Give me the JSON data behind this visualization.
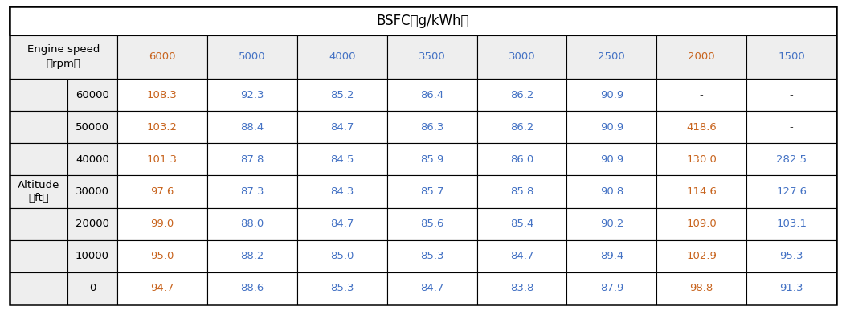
{
  "title": "BSFC（g/kWh）",
  "col_header_label1": "Engine speed",
  "col_header_label2": "（rpm）",
  "row_header_label1": "Altitude",
  "row_header_label2": "（ft）",
  "engine_speeds": [
    "6000",
    "5000",
    "4000",
    "3500",
    "3000",
    "2500",
    "2000",
    "1500"
  ],
  "altitudes": [
    "60000",
    "50000",
    "40000",
    "30000",
    "20000",
    "10000",
    "0"
  ],
  "data": [
    [
      "108.3",
      "92.3",
      "85.2",
      "86.4",
      "86.2",
      "90.9",
      "-",
      "-"
    ],
    [
      "103.2",
      "88.4",
      "84.7",
      "86.3",
      "86.2",
      "90.9",
      "418.6",
      "-"
    ],
    [
      "101.3",
      "87.8",
      "84.5",
      "85.9",
      "86.0",
      "90.9",
      "130.0",
      "282.5"
    ],
    [
      "97.6",
      "87.3",
      "84.3",
      "85.7",
      "85.8",
      "90.8",
      "114.6",
      "127.6"
    ],
    [
      "99.0",
      "88.0",
      "84.7",
      "85.6",
      "85.4",
      "90.2",
      "109.0",
      "103.1"
    ],
    [
      "95.0",
      "88.2",
      "85.0",
      "85.3",
      "84.7",
      "89.4",
      "102.9",
      "95.3"
    ],
    [
      "94.7",
      "88.6",
      "85.3",
      "84.7",
      "83.8",
      "87.9",
      "98.8",
      "91.3"
    ]
  ],
  "col_colors": [
    "#c8641e",
    "#4472c4",
    "#4472c4",
    "#4472c4",
    "#4472c4",
    "#4472c4",
    "#c8641e",
    "#4472c4"
  ],
  "color_dash": "#333333",
  "title_bg": "#ffffff",
  "header_bg": "#eeeeee",
  "cell_bg": "#ffffff",
  "border_color": "#000000",
  "title_fontsize": 12,
  "header_fontsize": 9.5,
  "cell_fontsize": 9.5,
  "fig_width": 10.53,
  "fig_height": 3.87,
  "dpi": 100
}
